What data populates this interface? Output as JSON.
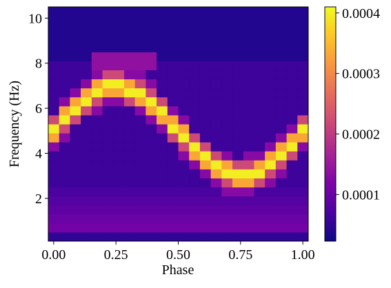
{
  "chart_data": {
    "type": "heatmap",
    "cmap": "plasma",
    "xlabel": "Phase",
    "ylabel": "Frequency (Hz)",
    "xlim": [
      -0.0217,
      1.0217
    ],
    "ylim": [
      0.1,
      10.5
    ],
    "xticks": [
      {
        "value": 0,
        "label": "0.00"
      },
      {
        "value": 0.25,
        "label": "0.25"
      },
      {
        "value": 0.5,
        "label": "0.50"
      },
      {
        "value": 0.75,
        "label": "0.75"
      },
      {
        "value": 1,
        "label": "1.00"
      }
    ],
    "yticks": [
      2,
      4,
      6,
      8,
      10
    ],
    "clim": [
      2.3e-05,
      0.00041
    ],
    "cticks": [
      0.0001,
      0.0002,
      0.0003,
      0.0004
    ],
    "xbins": [
      -0.0217,
      0.0217,
      0.0652,
      0.1087,
      0.1522,
      0.1957,
      0.2391,
      0.2826,
      0.3261,
      0.3696,
      0.413,
      0.4565,
      0.5,
      0.5435,
      0.587,
      0.6304,
      0.6739,
      0.7174,
      0.7609,
      0.8043,
      0.8478,
      0.8913,
      0.9348,
      0.9783,
      1.0217
    ],
    "ybins": [
      0.1,
      0.5,
      0.9,
      1.3,
      1.7,
      2.1,
      2.5,
      2.9,
      3.3,
      3.7,
      4.1,
      4.5,
      4.9,
      5.3,
      5.7,
      6.1,
      6.5,
      6.9,
      7.3,
      7.7,
      8.1,
      8.5,
      8.9,
      9.3,
      9.7,
      10.1,
      10.5
    ],
    "z": [
      [
        5e-05,
        5e-05,
        5e-05,
        5e-05,
        5e-05,
        5e-05,
        5e-05,
        5e-05,
        5e-05,
        5e-05,
        5e-05,
        5e-05,
        5e-05,
        5e-05,
        5e-05,
        5e-05,
        5e-05,
        5e-05,
        5e-05,
        5e-05,
        5e-05,
        5e-05,
        5e-05,
        5e-05
      ],
      [
        0.00011,
        0.00011,
        0.00011,
        0.00011,
        0.00011,
        0.00011,
        0.00011,
        0.00011,
        0.00011,
        0.00011,
        0.00011,
        0.00011,
        0.00011,
        0.00011,
        0.00011,
        0.00011,
        0.00011,
        0.00011,
        0.00011,
        0.00011,
        0.00011,
        0.00011,
        0.00011,
        0.00011
      ],
      [
        0.0001,
        0.0001,
        0.0001,
        0.0001,
        0.0001,
        0.0001,
        0.0001,
        0.0001,
        0.0001,
        0.0001,
        0.0001,
        0.0001,
        0.0001,
        0.0001,
        0.0001,
        0.0001,
        0.0001,
        0.0001,
        0.0001,
        0.0001,
        0.0001,
        0.0001,
        0.0001,
        0.0001
      ],
      [
        9e-05,
        9e-05,
        9e-05,
        9e-05,
        9e-05,
        9e-05,
        9e-05,
        9e-05,
        9e-05,
        9e-05,
        9e-05,
        9e-05,
        9e-05,
        9e-05,
        9e-05,
        9e-05,
        9e-05,
        9e-05,
        9e-05,
        9e-05,
        9e-05,
        9e-05,
        9e-05,
        9e-05
      ],
      [
        8e-05,
        8e-05,
        8e-05,
        8e-05,
        8e-05,
        8e-05,
        8e-05,
        8e-05,
        8e-05,
        8e-05,
        8e-05,
        8e-05,
        8e-05,
        8e-05,
        8e-05,
        8e-05,
        8e-05,
        8e-05,
        8e-05,
        8e-05,
        8e-05,
        8e-05,
        8e-05,
        8e-05
      ],
      [
        7e-05,
        7e-05,
        7e-05,
        7e-05,
        7e-05,
        7e-05,
        7e-05,
        7e-05,
        7e-05,
        7e-05,
        7e-05,
        7e-05,
        7e-05,
        7e-05,
        7e-05,
        7e-05,
        0.00013,
        0.00013,
        0.00013,
        7e-05,
        7e-05,
        7e-05,
        7e-05,
        7e-05
      ],
      [
        6e-05,
        6e-05,
        6e-05,
        6e-05,
        6e-05,
        6e-05,
        6e-05,
        6e-05,
        6e-05,
        6e-05,
        6e-05,
        6e-05,
        6e-05,
        6e-05,
        6e-05,
        0.00013,
        0.00022,
        0.00033,
        0.00033,
        0.00022,
        0.00013,
        6e-05,
        6e-05,
        6e-05
      ],
      [
        6e-05,
        6e-05,
        6e-05,
        6e-05,
        6e-05,
        6e-05,
        6e-05,
        6e-05,
        6e-05,
        6e-05,
        6e-05,
        6e-05,
        6e-05,
        6e-05,
        0.00013,
        0.00033,
        0.0004,
        0.0004,
        0.0004,
        0.0004,
        0.00022,
        0.00013,
        6e-05,
        6e-05
      ],
      [
        6e-05,
        6e-05,
        6e-05,
        6e-05,
        6e-05,
        6e-05,
        6e-05,
        6e-05,
        6e-05,
        6e-05,
        6e-05,
        6e-05,
        6e-05,
        0.00013,
        0.00033,
        0.0004,
        0.00033,
        0.00022,
        0.00022,
        0.00033,
        0.0004,
        0.00022,
        6e-05,
        6e-05
      ],
      [
        6e-05,
        6e-05,
        6e-05,
        6e-05,
        6e-05,
        6e-05,
        6e-05,
        6e-05,
        6e-05,
        6e-05,
        6e-05,
        6e-05,
        0.00013,
        0.00033,
        0.0004,
        0.00022,
        0.00013,
        6e-05,
        0.00013,
        0.00013,
        0.00033,
        0.0004,
        0.00022,
        6e-05
      ],
      [
        0.00013,
        6e-05,
        6e-05,
        6e-05,
        6e-05,
        6e-05,
        6e-05,
        6e-05,
        6e-05,
        6e-05,
        6e-05,
        6e-05,
        0.00022,
        0.0004,
        0.00022,
        6e-05,
        6e-05,
        6e-05,
        6e-05,
        6e-05,
        0.00013,
        0.00033,
        0.0004,
        0.00013
      ],
      [
        0.00033,
        0.00013,
        6e-05,
        6e-05,
        6e-05,
        6e-05,
        6e-05,
        6e-05,
        6e-05,
        6e-05,
        6e-05,
        0.00022,
        0.0004,
        0.00022,
        6e-05,
        6e-05,
        6e-05,
        6e-05,
        6e-05,
        6e-05,
        6e-05,
        0.00013,
        0.00033,
        0.00033
      ],
      [
        0.0004,
        0.00022,
        6e-05,
        6e-05,
        6e-05,
        6e-05,
        6e-05,
        6e-05,
        6e-05,
        6e-05,
        0.00013,
        0.0004,
        0.00033,
        6e-05,
        6e-05,
        6e-05,
        6e-05,
        6e-05,
        6e-05,
        6e-05,
        6e-05,
        6e-05,
        0.00013,
        0.0004
      ],
      [
        0.00022,
        0.0004,
        0.00022,
        6e-05,
        6e-05,
        6e-05,
        6e-05,
        6e-05,
        6e-05,
        0.00013,
        0.00033,
        0.00033,
        0.00013,
        6e-05,
        6e-05,
        6e-05,
        6e-05,
        6e-05,
        6e-05,
        6e-05,
        6e-05,
        6e-05,
        6e-05,
        0.00022
      ],
      [
        6e-05,
        0.00033,
        0.0004,
        0.00022,
        0.00013,
        6e-05,
        6e-05,
        6e-05,
        0.00013,
        0.00033,
        0.0004,
        0.00013,
        6e-05,
        6e-05,
        6e-05,
        6e-05,
        6e-05,
        6e-05,
        6e-05,
        6e-05,
        6e-05,
        6e-05,
        6e-05,
        6e-05
      ],
      [
        6e-05,
        0.00013,
        0.00033,
        0.0004,
        0.00022,
        0.00013,
        0.00013,
        0.00022,
        0.00033,
        0.0004,
        0.00022,
        6e-05,
        6e-05,
        6e-05,
        6e-05,
        6e-05,
        6e-05,
        6e-05,
        6e-05,
        6e-05,
        6e-05,
        6e-05,
        6e-05,
        6e-05
      ],
      [
        6e-05,
        6e-05,
        0.00013,
        0.00033,
        0.0004,
        0.00033,
        0.00033,
        0.0004,
        0.0004,
        0.00022,
        6e-05,
        6e-05,
        6e-05,
        6e-05,
        6e-05,
        6e-05,
        6e-05,
        6e-05,
        6e-05,
        6e-05,
        6e-05,
        6e-05,
        6e-05,
        6e-05
      ],
      [
        6e-05,
        6e-05,
        6e-05,
        0.00013,
        0.00033,
        0.0004,
        0.0004,
        0.00033,
        0.00022,
        0.00013,
        6e-05,
        6e-05,
        6e-05,
        6e-05,
        6e-05,
        6e-05,
        6e-05,
        6e-05,
        6e-05,
        6e-05,
        6e-05,
        6e-05,
        6e-05,
        6e-05
      ],
      [
        6e-05,
        6e-05,
        6e-05,
        6e-05,
        0.00013,
        0.00022,
        0.00022,
        0.00013,
        0.00013,
        6e-05,
        6e-05,
        6e-05,
        6e-05,
        6e-05,
        6e-05,
        6e-05,
        6e-05,
        6e-05,
        6e-05,
        6e-05,
        6e-05,
        6e-05,
        6e-05,
        6e-05
      ],
      [
        6e-05,
        6e-05,
        6e-05,
        6e-05,
        0.00014,
        0.00014,
        0.00014,
        0.00014,
        0.00014,
        0.00014,
        6e-05,
        6e-05,
        6e-05,
        6e-05,
        6e-05,
        6e-05,
        6e-05,
        6e-05,
        6e-05,
        6e-05,
        6e-05,
        6e-05,
        6e-05,
        6e-05
      ],
      [
        4e-05,
        4e-05,
        4e-05,
        4e-05,
        0.00014,
        0.00014,
        0.00014,
        0.00014,
        0.00014,
        0.00014,
        4e-05,
        4e-05,
        4e-05,
        4e-05,
        4e-05,
        4e-05,
        4e-05,
        4e-05,
        4e-05,
        4e-05,
        4e-05,
        4e-05,
        4e-05,
        4e-05
      ],
      [
        4e-05,
        4e-05,
        4e-05,
        4e-05,
        4e-05,
        4e-05,
        4e-05,
        4e-05,
        4e-05,
        4e-05,
        4e-05,
        4e-05,
        4e-05,
        4e-05,
        4e-05,
        4e-05,
        4e-05,
        4e-05,
        4e-05,
        4e-05,
        4e-05,
        4e-05,
        4e-05,
        4e-05
      ],
      [
        4e-05,
        4e-05,
        4e-05,
        4e-05,
        4e-05,
        4e-05,
        4e-05,
        4e-05,
        4e-05,
        4e-05,
        4e-05,
        4e-05,
        4e-05,
        4e-05,
        4e-05,
        4e-05,
        4e-05,
        4e-05,
        4e-05,
        4e-05,
        4e-05,
        4e-05,
        4e-05,
        4e-05
      ],
      [
        4e-05,
        4e-05,
        4e-05,
        4e-05,
        4e-05,
        4e-05,
        4e-05,
        4e-05,
        4e-05,
        4e-05,
        4e-05,
        4e-05,
        4e-05,
        4e-05,
        4e-05,
        4e-05,
        4e-05,
        4e-05,
        4e-05,
        4e-05,
        4e-05,
        4e-05,
        4e-05,
        4e-05
      ],
      [
        4e-05,
        4e-05,
        4e-05,
        4e-05,
        4e-05,
        4e-05,
        4e-05,
        4e-05,
        4e-05,
        4e-05,
        4e-05,
        4e-05,
        4e-05,
        4e-05,
        4e-05,
        4e-05,
        4e-05,
        4e-05,
        4e-05,
        4e-05,
        4e-05,
        4e-05,
        4e-05,
        4e-05
      ],
      [
        4e-05,
        4e-05,
        4e-05,
        4e-05,
        4e-05,
        4e-05,
        4e-05,
        4e-05,
        4e-05,
        4e-05,
        4e-05,
        4e-05,
        4e-05,
        4e-05,
        4e-05,
        4e-05,
        4e-05,
        4e-05,
        4e-05,
        4e-05,
        4e-05,
        4e-05,
        4e-05,
        4e-05
      ]
    ]
  }
}
